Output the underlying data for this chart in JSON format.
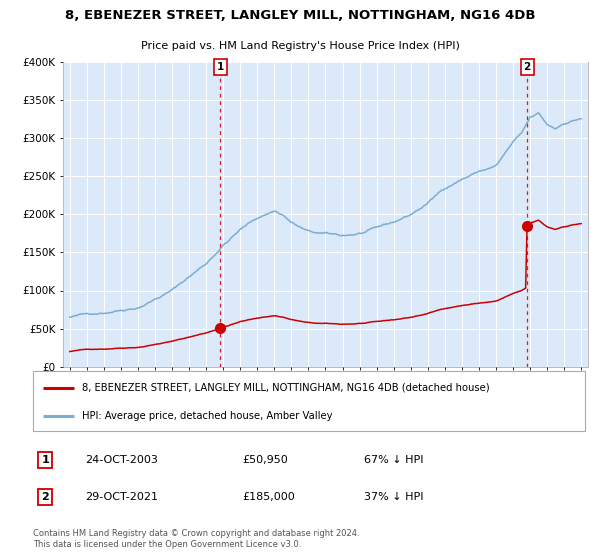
{
  "title": "8, EBENEZER STREET, LANGLEY MILL, NOTTINGHAM, NG16 4DB",
  "subtitle": "Price paid vs. HM Land Registry's House Price Index (HPI)",
  "red_legend": "8, EBENEZER STREET, LANGLEY MILL, NOTTINGHAM, NG16 4DB (detached house)",
  "blue_legend": "HPI: Average price, detached house, Amber Valley",
  "sale1_label": "1",
  "sale1_date": "24-OCT-2003",
  "sale1_price": "£50,950",
  "sale1_hpi": "67% ↓ HPI",
  "sale2_label": "2",
  "sale2_date": "29-OCT-2021",
  "sale2_price": "£185,000",
  "sale2_hpi": "37% ↓ HPI",
  "footer": "Contains HM Land Registry data © Crown copyright and database right 2024.\nThis data is licensed under the Open Government Licence v3.0.",
  "ylim": [
    0,
    400000
  ],
  "plot_bg": "#dce9f8",
  "red_color": "#cc0000",
  "blue_color": "#7aadd4",
  "sale1_year": 2003.83,
  "sale2_year": 2021.83,
  "sale1_red_val": 50950,
  "sale2_red_val": 185000
}
